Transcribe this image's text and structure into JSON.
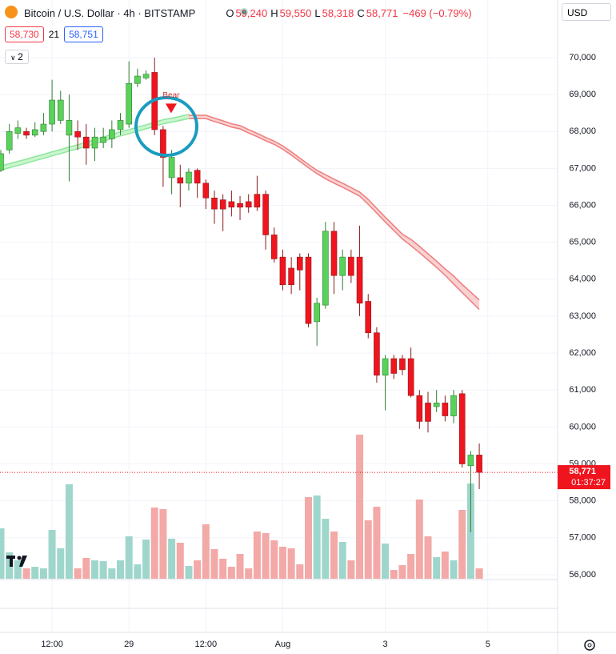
{
  "header": {
    "symbol": "Bitcoin / U.S. Dollar · 4h · BITSTAMP",
    "ohlc": [
      {
        "key": "O",
        "value": "59,240"
      },
      {
        "key": "H",
        "value": "59,550"
      },
      {
        "key": "L",
        "value": "58,318"
      },
      {
        "key": "C",
        "value": "58,771"
      }
    ],
    "change": "−469 (−0.79%)"
  },
  "indicator": {
    "value1": "58,730",
    "length": "21",
    "value2": "58,751"
  },
  "toggle": "2",
  "currency": "USD",
  "chart_data": {
    "type": "candlestick",
    "open": [
      66950,
      67500,
      67950,
      68000,
      67900,
      68000,
      68200,
      68300,
      67900,
      68000,
      67850,
      67550,
      67700,
      67800,
      68050,
      68200,
      69300,
      69450,
      69600,
      68050,
      66750,
      66750,
      66600,
      66950,
      66600,
      66200,
      66150,
      66100,
      66050,
      66100,
      66300,
      66300,
      65200,
      64600,
      64300,
      64600,
      64600,
      62850,
      63300,
      65300,
      64100,
      64600,
      64600,
      63400,
      62550,
      61400,
      61850,
      61850,
      61850,
      60850,
      60650,
      60550,
      60650,
      60300,
      60900,
      58950,
      59240
    ],
    "high": [
      67500,
      68200,
      68300,
      68100,
      68250,
      68500,
      69400,
      69100,
      69000,
      68300,
      68200,
      68100,
      68100,
      68300,
      68500,
      69900,
      69700,
      69650,
      70000,
      68150,
      67500,
      67100,
      67000,
      67000,
      66700,
      66400,
      66300,
      66400,
      66250,
      66300,
      66800,
      66400,
      65400,
      64800,
      64600,
      64700,
      64700,
      63500,
      65550,
      65550,
      64800,
      64800,
      65450,
      63600,
      62700,
      61950,
      61950,
      61950,
      62150,
      61000,
      60950,
      61000,
      60850,
      61000,
      61000,
      59350,
      59550
    ],
    "low": [
      66900,
      67400,
      67800,
      67800,
      67850,
      67900,
      68000,
      68200,
      66650,
      67500,
      67100,
      67200,
      67550,
      67550,
      67900,
      68100,
      69200,
      69400,
      67900,
      66500,
      66300,
      65950,
      66400,
      66200,
      65900,
      65500,
      65300,
      65700,
      65600,
      65800,
      65850,
      64800,
      64450,
      63700,
      63600,
      63700,
      62700,
      62200,
      63200,
      63600,
      63700,
      63900,
      63000,
      62400,
      61200,
      60450,
      61300,
      61400,
      60800,
      59950,
      59850,
      60400,
      60150,
      60100,
      58900,
      57150,
      58318
    ],
    "close": [
      67400,
      68000,
      68100,
      67900,
      68050,
      68200,
      68850,
      68850,
      68300,
      67850,
      67550,
      67850,
      67850,
      68050,
      68300,
      69300,
      69500,
      69550,
      68050,
      67300,
      67300,
      66600,
      66900,
      66600,
      66200,
      65900,
      65900,
      65950,
      65950,
      65950,
      65950,
      65200,
      64550,
      63850,
      63850,
      64250,
      62800,
      63350,
      65300,
      64100,
      64600,
      64100,
      63350,
      62550,
      61400,
      61850,
      61450,
      61550,
      60850,
      60150,
      60150,
      60650,
      60300,
      60850,
      59000,
      59240,
      58771
    ],
    "volume": [
      63,
      33,
      23,
      13,
      15,
      13,
      61,
      38,
      118,
      13,
      26,
      23,
      22,
      13,
      23,
      53,
      18,
      49,
      89,
      87,
      50,
      45,
      16,
      23,
      68,
      37,
      25,
      15,
      31,
      13,
      59,
      57,
      48,
      40,
      38,
      18,
      102,
      104,
      75,
      59,
      46,
      23,
      180,
      73,
      90,
      44,
      11,
      17,
      31,
      99,
      53,
      27,
      34,
      23,
      86,
      119,
      13
    ],
    "volume_lim": [
      0,
      200
    ],
    "up_color": "#5ad25a",
    "down_color": "#f0141e",
    "volume_up_color": "#9fd6cc",
    "volume_down_color": "#f2a9a7",
    "bands": [
      {
        "color": "#8fe69b",
        "fill": "#c9f5cf",
        "upper": [
          67060,
          67130,
          67190,
          67250,
          67320,
          67380,
          67450,
          67510,
          67580,
          67640,
          67710,
          67780,
          67850,
          67920,
          67990,
          68050,
          68120,
          68180,
          68250,
          68320,
          68360,
          68410,
          68460,
          null,
          null,
          null,
          null,
          null,
          null,
          null,
          null,
          null,
          null,
          null,
          null,
          null,
          null,
          null,
          null,
          null,
          null,
          null,
          null,
          null,
          null,
          null,
          null,
          null,
          null,
          null,
          null,
          null,
          null,
          null,
          null,
          null,
          null
        ],
        "lower": [
          66950,
          67020,
          67080,
          67140,
          67210,
          67270,
          67340,
          67400,
          67470,
          67530,
          67600,
          67670,
          67740,
          67810,
          67880,
          67940,
          68010,
          68070,
          68140,
          68210,
          68250,
          68300,
          68350,
          null,
          null,
          null,
          null,
          null,
          null,
          null,
          null,
          null,
          null,
          null,
          null,
          null,
          null,
          null,
          null,
          null,
          null,
          null,
          null,
          null,
          null,
          null,
          null,
          null,
          null,
          null,
          null,
          null,
          null,
          null,
          null,
          null,
          null
        ]
      },
      {
        "color": "#ee7d7d",
        "fill": "#f9d1d1",
        "upper": [
          null,
          null,
          null,
          null,
          null,
          null,
          null,
          null,
          null,
          null,
          null,
          null,
          null,
          null,
          null,
          null,
          null,
          null,
          null,
          null,
          null,
          null,
          68440,
          68440,
          68440,
          68360,
          68290,
          68210,
          68160,
          68050,
          67950,
          67840,
          67740,
          67610,
          67450,
          67280,
          67110,
          66950,
          66830,
          66710,
          66600,
          66480,
          66360,
          66160,
          65920,
          65680,
          65450,
          65220,
          65080,
          64890,
          64690,
          64490,
          64280,
          64090,
          63860,
          63650,
          63440
        ],
        "lower": [
          null,
          null,
          null,
          null,
          null,
          null,
          null,
          null,
          null,
          null,
          null,
          null,
          null,
          null,
          null,
          null,
          null,
          null,
          null,
          null,
          null,
          null,
          68350,
          68350,
          68350,
          68270,
          68200,
          68120,
          68070,
          67960,
          67860,
          67750,
          67650,
          67520,
          67360,
          67190,
          67020,
          66860,
          66720,
          66600,
          66490,
          66370,
          66250,
          66030,
          65790,
          65550,
          65320,
          65090,
          64910,
          64720,
          64520,
          64320,
          64110,
          63870,
          63640,
          63410,
          63180
        ]
      }
    ],
    "ylim": [
      55890,
      71560
    ],
    "yticks": [
      {
        "value": 56000,
        "label": "56,000"
      },
      {
        "value": 57000,
        "label": "57,000"
      },
      {
        "value": 58000,
        "label": "58,000"
      },
      {
        "value": 59000,
        "label": "59,000"
      },
      {
        "value": 60000,
        "label": "60,000"
      },
      {
        "value": 61000,
        "label": "61,000"
      },
      {
        "value": 62000,
        "label": "62,000"
      },
      {
        "value": 63000,
        "label": "63,000"
      },
      {
        "value": 64000,
        "label": "64,000"
      },
      {
        "value": 65000,
        "label": "65,000"
      },
      {
        "value": 66000,
        "label": "66,000"
      },
      {
        "value": 67000,
        "label": "67,000"
      },
      {
        "value": 68000,
        "label": "68,000"
      },
      {
        "value": 69000,
        "label": "69,000"
      },
      {
        "value": 70000,
        "label": "70,000"
      }
    ],
    "xticks": [
      {
        "value": 6,
        "label": "12:00"
      },
      {
        "value": 15,
        "label": "29"
      },
      {
        "value": 24,
        "label": "12:00"
      },
      {
        "value": 33,
        "label": "Aug"
      },
      {
        "value": 45,
        "label": "3"
      },
      {
        "value": 57,
        "label": "5"
      }
    ],
    "grid": true,
    "annotation": {
      "text": "Bear",
      "index": 19
    },
    "last_price_label": "58,771",
    "countdown": "01:37:27"
  }
}
